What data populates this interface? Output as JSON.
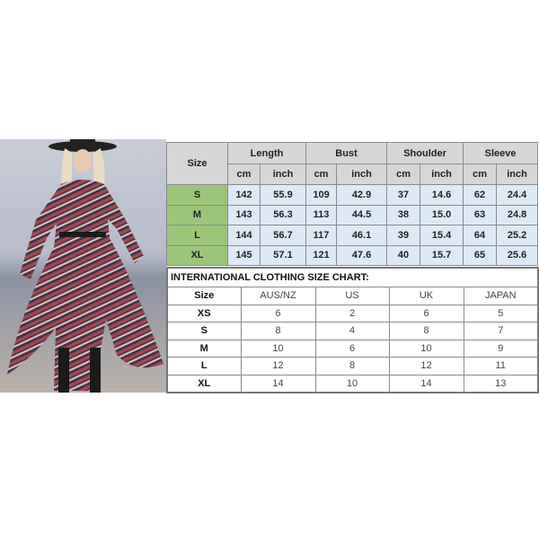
{
  "measurements": {
    "size_header": "Size",
    "groups": [
      "Length",
      "Bust",
      "Shoulder",
      "Sleeve"
    ],
    "units": [
      "cm",
      "inch"
    ],
    "rows": [
      {
        "size": "S",
        "values": [
          "142",
          "55.9",
          "109",
          "42.9",
          "37",
          "14.6",
          "62",
          "24.4"
        ]
      },
      {
        "size": "M",
        "values": [
          "143",
          "56.3",
          "113",
          "44.5",
          "38",
          "15.0",
          "63",
          "24.8"
        ]
      },
      {
        "size": "L",
        "values": [
          "144",
          "56.7",
          "117",
          "46.1",
          "39",
          "15.4",
          "64",
          "25.2"
        ]
      },
      {
        "size": "XL",
        "values": [
          "145",
          "57.1",
          "121",
          "47.6",
          "40",
          "15.7",
          "65",
          "25.6"
        ]
      }
    ],
    "colors": {
      "header": "#d6d6d6",
      "size_cell": "#9bc67a",
      "value_cell": "#dde9f5"
    }
  },
  "international": {
    "title": "INTERNATIONAL CLOTHING SIZE CHART:",
    "headers": [
      "Size",
      "AUS/NZ",
      "US",
      "UK",
      "JAPAN"
    ],
    "rows": [
      [
        "XS",
        "6",
        "2",
        "6",
        "5"
      ],
      [
        "S",
        "8",
        "4",
        "8",
        "7"
      ],
      [
        "M",
        "10",
        "6",
        "10",
        "9"
      ],
      [
        "L",
        "12",
        "8",
        "12",
        "11"
      ],
      [
        "XL",
        "14",
        "10",
        "14",
        "13"
      ]
    ]
  },
  "photo": {
    "subject": "model-in-boho-maxi-dress"
  }
}
